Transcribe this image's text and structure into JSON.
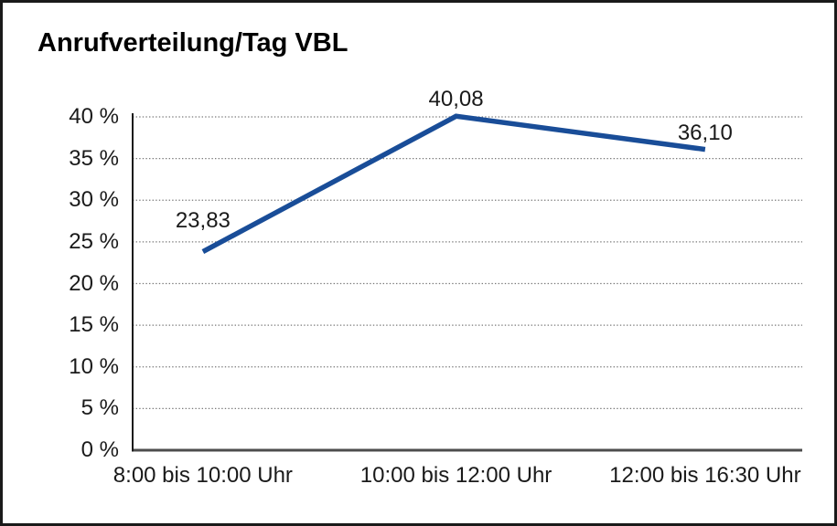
{
  "chart_data": {
    "type": "line",
    "title": "Anrufverteilung/Tag VBL",
    "categories": [
      "8:00 bis 10:00 Uhr",
      "10:00 bis 12:00 Uhr",
      "12:00 bis 16:30 Uhr"
    ],
    "values": [
      23.83,
      40.08,
      36.1
    ],
    "point_labels": [
      "23,83",
      "40,08",
      "36,10"
    ],
    "xlabel": "",
    "ylabel": "",
    "ylim": [
      0,
      40
    ],
    "ytick_step": 5,
    "ytick_labels": [
      "0 %",
      "5 %",
      "10 %",
      "15 %",
      "20 %",
      "25 %",
      "30 %",
      "35 %",
      "40 %"
    ],
    "grid": "horizontal-dotted",
    "legend": "none",
    "colors": {
      "line": "#194D98",
      "axis": "#1a1a1a",
      "baseline": "#4d4d4d",
      "grid": "#7a7a7a",
      "text": "#1a1a1a",
      "border": "#1a1a1a"
    }
  }
}
